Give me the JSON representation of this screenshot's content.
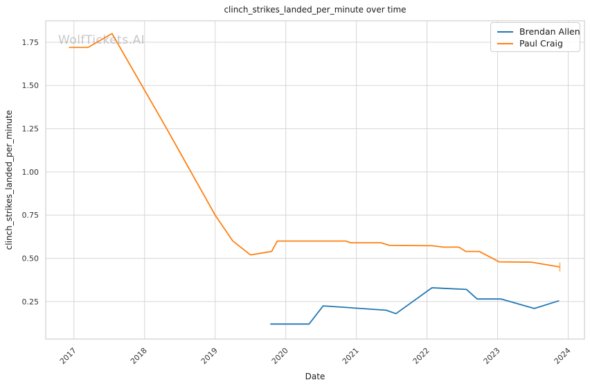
{
  "watermark": "WolfTickets.AI",
  "chart_data": {
    "type": "line",
    "title": "clinch_strikes_landed_per_minute over time",
    "xlabel": "Date",
    "ylabel": "clinch_strikes_landed_per_minute",
    "x_unit": "decimal_year",
    "xlim": [
      2016.6,
      2024.23
    ],
    "ylim": [
      0.033,
      1.874
    ],
    "x_ticks": [
      2017,
      2018,
      2019,
      2020,
      2021,
      2022,
      2023,
      2024
    ],
    "y_ticks": [
      0.25,
      0.5,
      0.75,
      1.0,
      1.25,
      1.5,
      1.75
    ],
    "grid": true,
    "grid_color": "#d5d5d5",
    "spine_color": "#cfcfcf",
    "tick_label_color": "#333333",
    "legend_position": "upper right",
    "series": [
      {
        "name": "Brendan Allen",
        "color": "#1f77b4",
        "points": [
          [
            2019.78,
            0.12
          ],
          [
            2020.33,
            0.12
          ],
          [
            2020.53,
            0.225
          ],
          [
            2021.42,
            0.2
          ],
          [
            2021.56,
            0.18
          ],
          [
            2022.07,
            0.33
          ],
          [
            2022.56,
            0.32
          ],
          [
            2022.71,
            0.265
          ],
          [
            2023.05,
            0.265
          ],
          [
            2023.52,
            0.21
          ],
          [
            2023.87,
            0.255
          ]
        ],
        "end_cap": false
      },
      {
        "name": "Paul Craig",
        "color": "#ff7f0e",
        "points": [
          [
            2016.93,
            1.72
          ],
          [
            2017.2,
            1.72
          ],
          [
            2017.54,
            1.8
          ],
          [
            2018.3,
            1.26
          ],
          [
            2019.0,
            0.75
          ],
          [
            2019.25,
            0.6
          ],
          [
            2019.5,
            0.52
          ],
          [
            2019.8,
            0.54
          ],
          [
            2019.88,
            0.6
          ],
          [
            2020.85,
            0.6
          ],
          [
            2020.92,
            0.59
          ],
          [
            2021.35,
            0.59
          ],
          [
            2021.47,
            0.575
          ],
          [
            2022.07,
            0.573
          ],
          [
            2022.23,
            0.565
          ],
          [
            2022.45,
            0.565
          ],
          [
            2022.55,
            0.54
          ],
          [
            2022.74,
            0.54
          ],
          [
            2023.02,
            0.48
          ],
          [
            2023.48,
            0.478
          ],
          [
            2023.88,
            0.45
          ]
        ],
        "end_cap": true
      }
    ]
  }
}
